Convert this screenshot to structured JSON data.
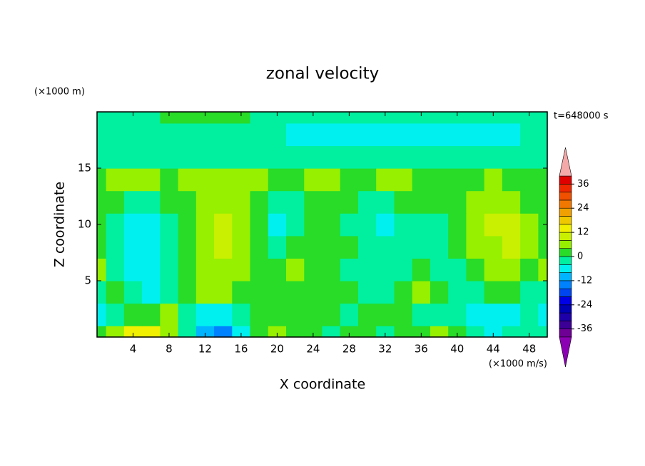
{
  "chart_data": {
    "type": "contour",
    "title": "zonal velocity",
    "x_label": "X coordinate",
    "y_label": "Z coordinate",
    "x_unit": "(×1000 m/s)",
    "y_unit": "(×1000 m)",
    "annotation": "t=648000 s",
    "xlim": [
      0,
      50
    ],
    "ylim": [
      0,
      20
    ],
    "xticks": [
      4,
      8,
      12,
      16,
      20,
      24,
      28,
      32,
      36,
      40,
      44,
      48
    ],
    "yticks": [
      5,
      10,
      15
    ],
    "levels": [
      -40,
      -36,
      -32,
      -28,
      -24,
      -20,
      -16,
      -12,
      -8,
      -4,
      0,
      4,
      8,
      12,
      16,
      20,
      24,
      28,
      32,
      36,
      40
    ],
    "colors": [
      "#6e0096",
      "#3c0096",
      "#1e00aa",
      "#0000b4",
      "#0000e6",
      "#0046f0",
      "#0082ff",
      "#00b4ff",
      "#00f0f0",
      "#00f0a0",
      "#28dc28",
      "#96f000",
      "#c8f000",
      "#f0f000",
      "#f0c800",
      "#f0a000",
      "#f07800",
      "#f05000",
      "#f02800",
      "#e00000"
    ],
    "over_color": "#f4a8a8",
    "under_color": "#8c00b4",
    "colorbar_ticks": [
      -36,
      -24,
      -12,
      0,
      12,
      24,
      36
    ],
    "x": [
      0,
      2,
      4,
      6,
      8,
      10,
      12,
      14,
      16,
      18,
      20,
      22,
      24,
      26,
      28,
      30,
      32,
      34,
      36,
      38,
      40,
      42,
      44,
      46,
      48,
      50
    ],
    "y": [
      0,
      2,
      4,
      6,
      8,
      10,
      12,
      14,
      16,
      18,
      20
    ],
    "z": [
      [
        2,
        6,
        12,
        12,
        6,
        -2,
        -10,
        -14,
        -6,
        2,
        6,
        2,
        2,
        -2,
        2,
        2,
        -2,
        2,
        2,
        6,
        2,
        -2,
        -6,
        -2,
        -2,
        -2
      ],
      [
        -6,
        -2,
        2,
        2,
        6,
        -2,
        -6,
        -6,
        -2,
        2,
        2,
        2,
        2,
        2,
        -2,
        2,
        2,
        2,
        -2,
        -2,
        -2,
        -6,
        -6,
        -6,
        -2,
        -6
      ],
      [
        -2,
        2,
        -2,
        -6,
        -2,
        2,
        6,
        6,
        2,
        2,
        2,
        2,
        2,
        2,
        2,
        -2,
        -2,
        2,
        6,
        2,
        -2,
        -2,
        2,
        2,
        -2,
        -2
      ],
      [
        6,
        -2,
        -6,
        -6,
        -2,
        2,
        6,
        6,
        6,
        2,
        2,
        6,
        2,
        2,
        -2,
        -2,
        -2,
        -2,
        2,
        -2,
        -2,
        2,
        6,
        6,
        2,
        6
      ],
      [
        2,
        -2,
        -6,
        -6,
        -2,
        2,
        6,
        10,
        6,
        2,
        -2,
        2,
        2,
        2,
        2,
        -2,
        -2,
        -2,
        -2,
        -2,
        2,
        6,
        6,
        10,
        6,
        2
      ],
      [
        2,
        -2,
        -6,
        -6,
        -2,
        2,
        6,
        10,
        6,
        2,
        -6,
        -2,
        2,
        2,
        -2,
        -2,
        -6,
        -2,
        -2,
        -2,
        2,
        6,
        10,
        10,
        6,
        2
      ],
      [
        2,
        2,
        -2,
        -2,
        2,
        2,
        6,
        6,
        6,
        2,
        -2,
        -2,
        2,
        2,
        2,
        -2,
        -2,
        2,
        2,
        2,
        2,
        6,
        6,
        6,
        2,
        2
      ],
      [
        2,
        6,
        6,
        6,
        2,
        6,
        6,
        6,
        6,
        6,
        2,
        2,
        6,
        6,
        2,
        2,
        6,
        6,
        2,
        2,
        2,
        2,
        6,
        2,
        2,
        2
      ],
      [
        -2,
        -2,
        -2,
        -2,
        -2,
        -2,
        -2,
        -2,
        -2,
        -2,
        -2,
        -2,
        -2,
        -2,
        -2,
        -2,
        -2,
        -2,
        -2,
        -2,
        -2,
        -2,
        -2,
        -2,
        -2,
        -2
      ],
      [
        -2,
        -2,
        -2,
        -2,
        -2,
        -2,
        -2,
        -2,
        -2,
        -2,
        -2,
        -6,
        -6,
        -6,
        -6,
        -6,
        -6,
        -6,
        -6,
        -6,
        -6,
        -6,
        -6,
        -6,
        -2,
        -2
      ],
      [
        -2,
        -2,
        -2,
        -2,
        2,
        2,
        2,
        2,
        2,
        -2,
        -2,
        -2,
        -2,
        -2,
        -2,
        -2,
        -2,
        -2,
        -2,
        -2,
        -2,
        -2,
        -2,
        -2,
        -2,
        -2
      ]
    ]
  }
}
